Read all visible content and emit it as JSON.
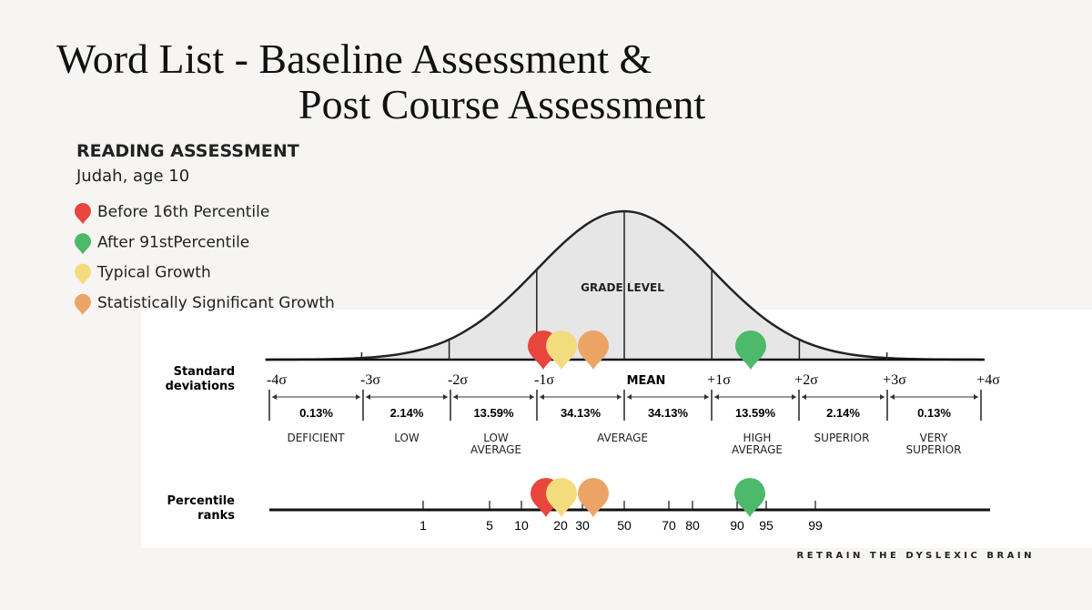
{
  "header": {
    "title_lines": [
      "Word List - Baseline Assessment &",
      "Post Course Assessment"
    ],
    "section": "READING ASSESSMENT",
    "student": "Judah, age 10"
  },
  "legend": [
    {
      "label": "Before 16th Percentile",
      "color": "#e8453c"
    },
    {
      "label": "After 91stPercentile",
      "color": "#4cb96b"
    },
    {
      "label": "Typical Growth",
      "color": "#f3dc7e"
    },
    {
      "label": "Statistically Significant Growth",
      "color": "#eca466"
    }
  ],
  "curve": {
    "center_label": "GRADE LEVEL",
    "axis_label_lines": [
      "Standard",
      "deviations"
    ],
    "sd_labels": [
      "-4σ",
      "-3σ",
      "-2σ",
      "-1σ",
      "MEAN",
      "+1σ",
      "+2σ",
      "+3σ",
      "+4σ"
    ],
    "percentages": [
      "0.13%",
      "2.14%",
      "13.59%",
      "34.13%",
      "34.13%",
      "13.59%",
      "2.14%",
      "0.13%"
    ],
    "categories": [
      [
        "DEFICIENT"
      ],
      [
        "LOW"
      ],
      [
        "LOW",
        "AVERAGE"
      ],
      [
        "AVERAGE"
      ],
      [
        "HIGH",
        "AVERAGE"
      ],
      [
        "SUPERIOR"
      ],
      [
        "VERY",
        "SUPERIOR"
      ]
    ]
  },
  "percentile": {
    "axis_label_lines": [
      "Percentile",
      "ranks"
    ],
    "ticks": [
      "1",
      "5",
      "10",
      "20",
      "30",
      "50",
      "70",
      "80",
      "90",
      "95",
      "99"
    ]
  },
  "footer": "RETRAIN THE DYSLEXIC BRAIN"
}
